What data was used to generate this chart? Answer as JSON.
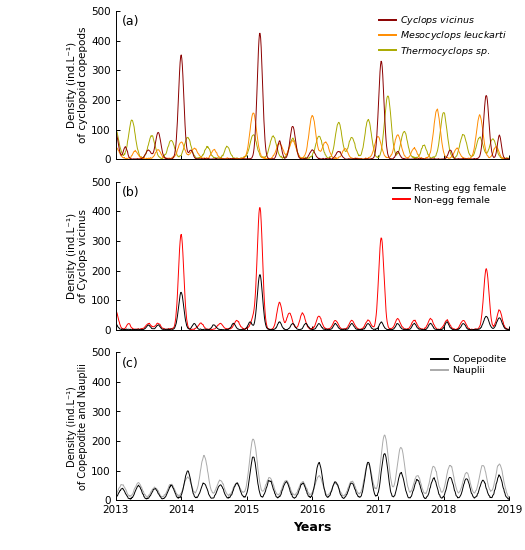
{
  "ylim": [
    0,
    500
  ],
  "yticks": [
    0,
    100,
    200,
    300,
    400,
    500
  ],
  "xlabel": "Years",
  "xtick_labels": [
    "2013",
    "2014",
    "2015",
    "2016",
    "2017",
    "2018",
    "2019"
  ],
  "panel_labels": [
    "(a)",
    "(b)",
    "(c)"
  ],
  "colors_a": [
    "#8B0000",
    "#FF8C00",
    "#AAAA00"
  ],
  "colors_b": [
    "#000000",
    "#FF0000"
  ],
  "colors_c": [
    "#000000",
    "#AAAAAA"
  ],
  "ylabel_a": "Density (ind.L⁻¹)\nof cyclopoid copepods",
  "ylabel_b": "Density (ind.L⁻¹)\nof Cyclops vicinus",
  "ylabel_c": "Density (ind.L⁻¹)\nof Copepodite and Nauplii"
}
